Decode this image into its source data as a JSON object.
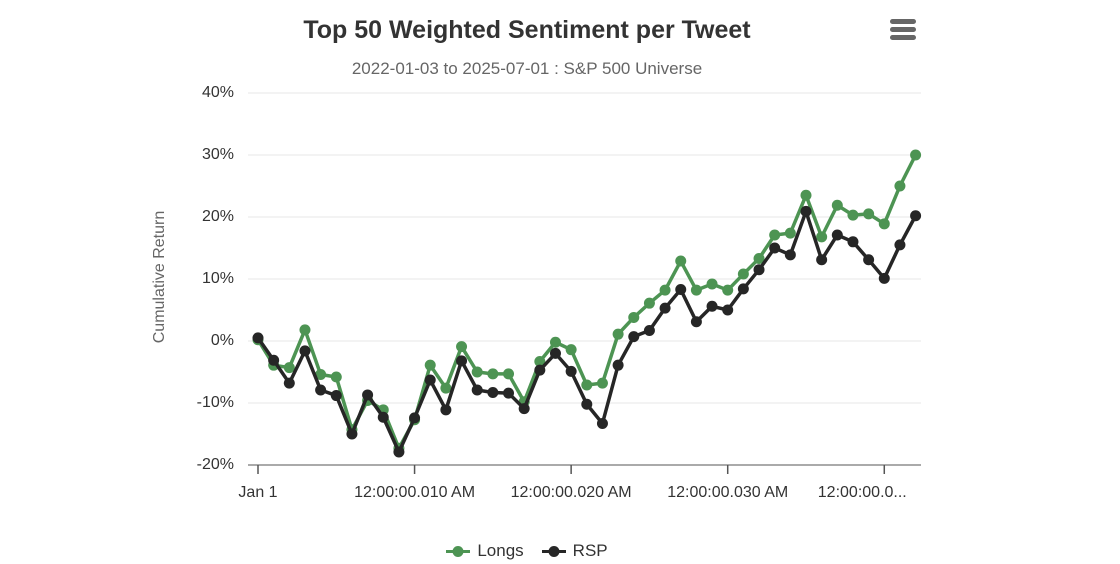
{
  "header": {
    "title": "Top 50 Weighted Sentiment per Tweet",
    "subtitle": "2022-01-03 to 2025-07-01 : S&P 500 Universe"
  },
  "icons": {
    "context_menu": "hamburger-icon"
  },
  "colors": {
    "grid": "#e7e7e7",
    "axis": "#555555",
    "title_text": "#333333",
    "subtitle_text": "#666666",
    "tick_label": "#333333",
    "longs": "#4d9453",
    "rsp": "#262626"
  },
  "chart_data": {
    "type": "line",
    "title": "Top 50 Weighted Sentiment per Tweet",
    "subtitle": "2022-01-03 to 2025-07-01 : S&P 500 Universe",
    "ylabel": "Cumulative Return",
    "xlabel": "",
    "ylim": [
      -20,
      40
    ],
    "grid": true,
    "legend_position": "bottom",
    "x_count": 43,
    "yticks": [
      {
        "value": 40,
        "label": "40%"
      },
      {
        "value": 30,
        "label": "30%"
      },
      {
        "value": 20,
        "label": "20%"
      },
      {
        "value": 10,
        "label": "10%"
      },
      {
        "value": 0,
        "label": "0%"
      },
      {
        "value": -10,
        "label": "-10%"
      },
      {
        "value": -20,
        "label": "-20%"
      }
    ],
    "xticks": [
      {
        "index": 0,
        "label": "Jan 1"
      },
      {
        "index": 10,
        "label": "12:00:00.010 AM"
      },
      {
        "index": 20,
        "label": "12:00:00.020 AM"
      },
      {
        "index": 30,
        "label": "12:00:00.030 AM"
      },
      {
        "index": 40,
        "label": "12:00:00.0..."
      }
    ],
    "series": [
      {
        "name": "Longs",
        "color": "#4d9453",
        "values": [
          0.2,
          -3.9,
          -4.3,
          1.8,
          -5.4,
          -5.8,
          -14.3,
          -9.6,
          -11.1,
          -17.3,
          -12.7,
          -3.9,
          -7.6,
          -0.9,
          -5.0,
          -5.3,
          -5.3,
          -9.8,
          -3.3,
          -0.2,
          -1.4,
          -7.1,
          -6.8,
          1.1,
          3.8,
          6.1,
          8.2,
          12.9,
          8.2,
          9.2,
          8.2,
          10.8,
          13.3,
          17.1,
          17.4,
          23.5,
          16.8,
          21.9,
          20.3,
          20.5,
          18.9,
          25.0,
          30.0
        ]
      },
      {
        "name": "RSP",
        "color": "#262626",
        "values": [
          0.5,
          -3.1,
          -6.8,
          -1.6,
          -7.9,
          -8.8,
          -15.0,
          -8.7,
          -12.3,
          -17.9,
          -12.4,
          -6.3,
          -11.1,
          -3.2,
          -7.9,
          -8.3,
          -8.4,
          -10.9,
          -4.7,
          -2.0,
          -4.9,
          -10.2,
          -13.3,
          -3.9,
          0.7,
          1.7,
          5.3,
          8.3,
          3.1,
          5.6,
          5.0,
          8.4,
          11.5,
          15.0,
          13.9,
          20.9,
          13.1,
          17.1,
          16.0,
          13.1,
          10.1,
          15.5,
          20.2
        ]
      }
    ]
  }
}
